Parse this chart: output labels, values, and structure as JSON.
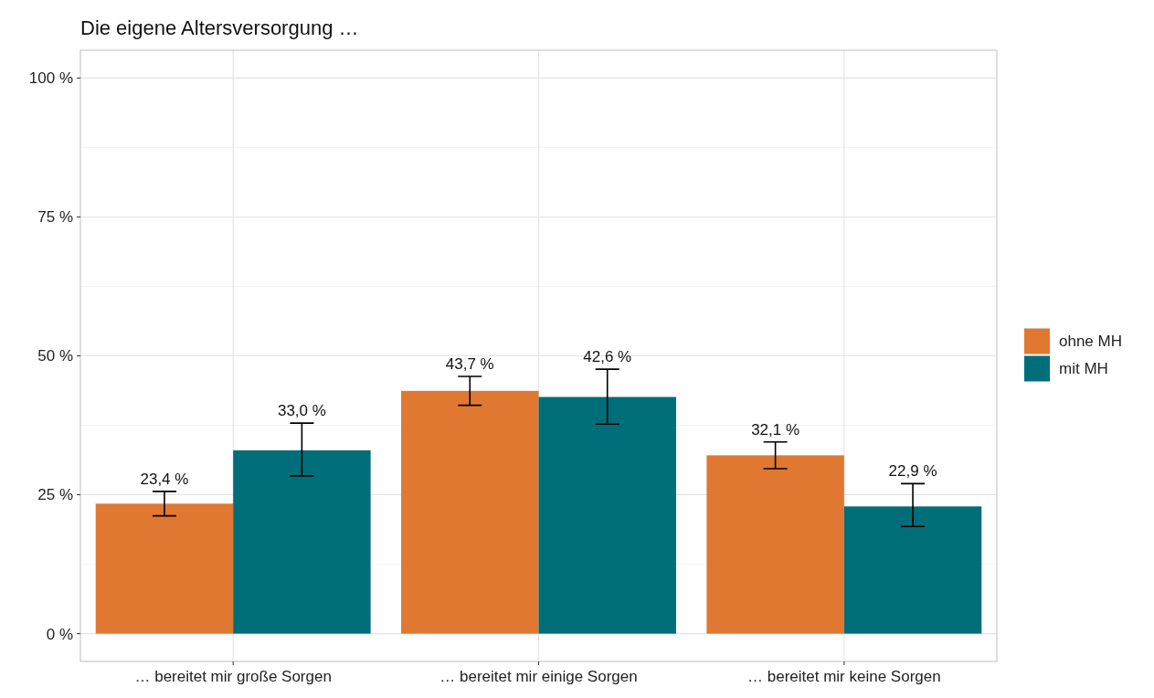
{
  "chart_data": {
    "type": "bar",
    "title": "Die eigene Altersversorgung …",
    "categories": [
      "… bereitet mir große Sorgen",
      "… bereitet mir einige Sorgen",
      "… bereitet mir keine Sorgen"
    ],
    "series": [
      {
        "name": "ohne MH",
        "color": "#e07832",
        "values": [
          23.4,
          43.7,
          32.1
        ],
        "errors": [
          [
            21.2,
            25.6
          ],
          [
            41.1,
            46.3
          ],
          [
            29.7,
            34.5
          ]
        ],
        "value_labels": [
          "23,4 %",
          "43,7 %",
          "32,1 %"
        ]
      },
      {
        "name": "mit MH",
        "color": "#006e78",
        "values": [
          33.0,
          42.6,
          22.9
        ],
        "errors": [
          [
            28.4,
            37.9
          ],
          [
            37.7,
            47.6
          ],
          [
            19.3,
            27.0
          ]
        ],
        "value_labels": [
          "33,0 %",
          "42,6 %",
          "22,9 %"
        ]
      }
    ],
    "ylim": [
      -5,
      105
    ],
    "yticks": [
      {
        "value": 0,
        "label": "0 %"
      },
      {
        "value": 12.5,
        "label": null
      },
      {
        "value": 25,
        "label": "25 %"
      },
      {
        "value": 37.5,
        "label": null
      },
      {
        "value": 50,
        "label": "50 %"
      },
      {
        "value": 62.5,
        "label": null
      },
      {
        "value": 75,
        "label": "75 %"
      },
      {
        "value": 87.5,
        "label": null
      },
      {
        "value": 100,
        "label": "100 %"
      }
    ],
    "grid": true,
    "legend": "right"
  }
}
